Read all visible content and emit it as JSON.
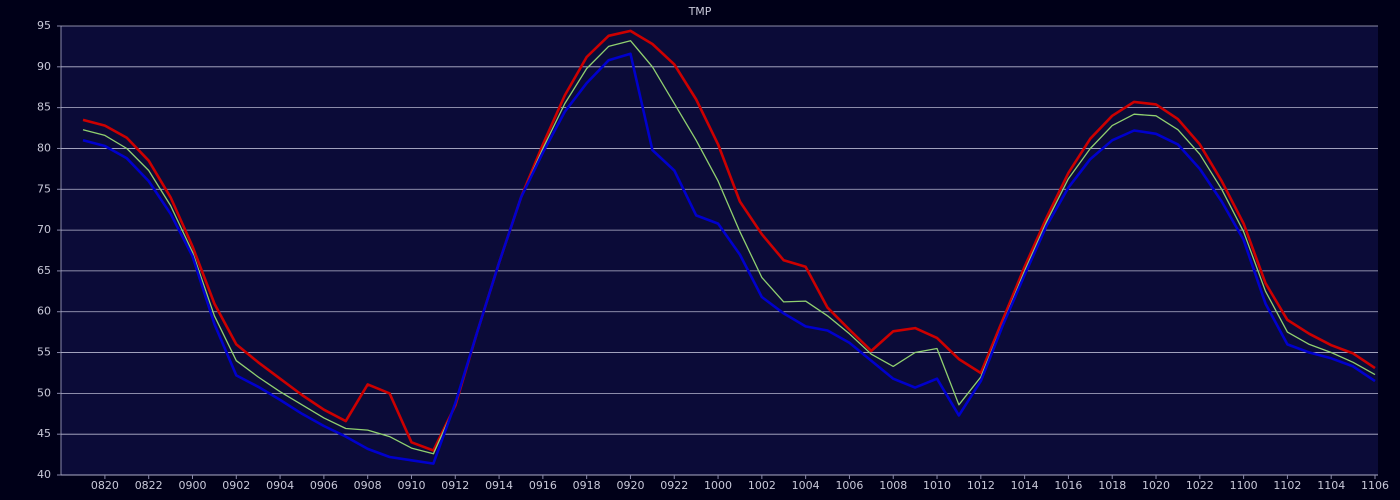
{
  "chart_data": {
    "type": "line",
    "title": "TMP",
    "categories": [
      null,
      "0820",
      null,
      "0822",
      null,
      "0900",
      null,
      "0902",
      null,
      "0904",
      null,
      "0906",
      null,
      "0908",
      null,
      "0910",
      null,
      "0912",
      null,
      "0914",
      null,
      "0916",
      null,
      "0918",
      null,
      "0920",
      null,
      "0922",
      null,
      "1000",
      null,
      "1002",
      null,
      "1004",
      null,
      "1006",
      null,
      "1008",
      null,
      "1010",
      null,
      "1012",
      null,
      "1014",
      null,
      "1016",
      null,
      "1018",
      null,
      "1020",
      null,
      "1022",
      null,
      "1100",
      null,
      "1102",
      null,
      "1104",
      null,
      "1106"
    ],
    "series": [
      {
        "color": "#cc0000",
        "values": [
          83.5,
          82.8,
          81.3,
          78.5,
          74,
          68,
          61,
          56,
          53.8,
          51.8,
          49.8,
          48,
          46.6,
          51.1,
          50,
          44,
          43,
          48.5,
          57.5,
          66,
          74,
          80.5,
          86.5,
          91.2,
          93.8,
          94.4,
          92.8,
          90.3,
          86,
          80.5,
          73.5,
          69.5,
          66.3,
          65.5,
          60.5,
          57.8,
          55.2,
          57.6,
          58,
          56.8,
          54.2,
          52.5,
          59,
          65.5,
          71.5,
          77,
          81.2,
          84,
          85.7,
          85.4,
          83.6,
          80.5,
          76,
          70.8,
          63.5,
          59,
          57.3,
          55.9,
          54.9,
          53.1
        ]
      },
      {
        "color": "#90d070",
        "values": [
          82.3,
          81.6,
          80,
          77.3,
          73,
          67.3,
          59.5,
          54,
          52,
          50.2,
          48.6,
          47,
          45.7,
          45.5,
          44.7,
          43.3,
          42.6,
          48.6,
          57.5,
          66,
          74,
          80,
          85.5,
          89.8,
          92.5,
          93.2,
          90,
          85.5,
          81,
          76,
          69.8,
          64.2,
          61.2,
          61.3,
          59.5,
          57.3,
          54.8,
          53.3,
          55,
          55.5,
          48.6,
          52,
          58.5,
          65,
          71,
          76.3,
          80,
          82.8,
          84.2,
          84,
          82.3,
          79.3,
          75,
          69.8,
          62.5,
          57.5,
          56,
          55,
          53.8,
          52.3
        ]
      },
      {
        "color": "#0000cc",
        "values": [
          81,
          80.3,
          78.8,
          76,
          72,
          66.8,
          58.5,
          52.2,
          50.8,
          49.2,
          47.5,
          46,
          44.7,
          43.2,
          42.2,
          41.8,
          41.4,
          48.8,
          57.5,
          66,
          74,
          79.5,
          84.5,
          88,
          90.8,
          91.6,
          79.8,
          77.3,
          71.8,
          70.8,
          67,
          61.8,
          59.8,
          58.2,
          57.7,
          56.2,
          54,
          51.8,
          50.7,
          51.8,
          47.3,
          51.5,
          58.3,
          64.5,
          70.5,
          75.2,
          78.7,
          81,
          82.2,
          81.8,
          80.5,
          77.5,
          73.5,
          68.8,
          61,
          56,
          55,
          54.3,
          53.3,
          51.5
        ]
      }
    ],
    "ylim": [
      40,
      95
    ],
    "yticks": [
      40,
      45,
      50,
      55,
      60,
      65,
      70,
      75,
      80,
      85,
      90,
      95
    ],
    "grid": true
  }
}
